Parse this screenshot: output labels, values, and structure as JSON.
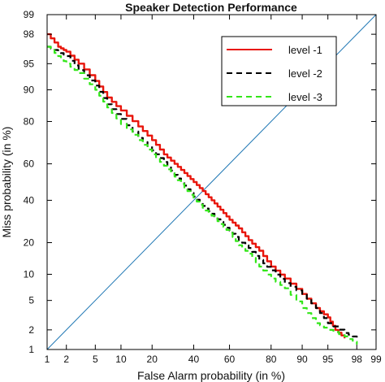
{
  "chart_data": {
    "type": "line",
    "title": "Speaker Detection Performance",
    "xlabel": "False Alarm probability (in %)",
    "ylabel": "Miss probability (in %)",
    "scale": "normal-deviate (probit)",
    "xlim": [
      1,
      99
    ],
    "ylim": [
      1,
      99
    ],
    "x_ticks": [
      "1",
      "2",
      "5",
      "10",
      "20",
      "40",
      "60",
      "80",
      "90",
      "95",
      "98",
      "99"
    ],
    "y_ticks": [
      "1",
      "2",
      "5",
      "10",
      "20",
      "40",
      "60",
      "80",
      "90",
      "95",
      "98",
      "99"
    ],
    "grid": false,
    "legend_position": "top-right",
    "reference_line": {
      "color": "#1f77b4",
      "points": [
        [
          1,
          1
        ],
        [
          99,
          99
        ]
      ]
    },
    "series": [
      {
        "name": "level -1",
        "color": "#e8160c",
        "dash": "solid",
        "points": [
          [
            1,
            98
          ],
          [
            1.5,
            97
          ],
          [
            2,
            96.5
          ],
          [
            3,
            95
          ],
          [
            5,
            92
          ],
          [
            7,
            88
          ],
          [
            10,
            84
          ],
          [
            15,
            78
          ],
          [
            20,
            72
          ],
          [
            25,
            65
          ],
          [
            30,
            60
          ],
          [
            35,
            55
          ],
          [
            40,
            50
          ],
          [
            45,
            45
          ],
          [
            50,
            40
          ],
          [
            55,
            35
          ],
          [
            60,
            30
          ],
          [
            65,
            26
          ],
          [
            70,
            21
          ],
          [
            75,
            17
          ],
          [
            80,
            12
          ],
          [
            85,
            9
          ],
          [
            90,
            6
          ],
          [
            93,
            4
          ],
          [
            95,
            3
          ],
          [
            96,
            2
          ],
          [
            97,
            1.5
          ]
        ]
      },
      {
        "name": "level -2",
        "color": "#000000",
        "dash": "dashed",
        "points": [
          [
            1,
            97
          ],
          [
            1.5,
            96.5
          ],
          [
            2,
            96
          ],
          [
            3,
            94
          ],
          [
            5,
            91
          ],
          [
            7,
            86
          ],
          [
            10,
            81
          ],
          [
            15,
            73
          ],
          [
            20,
            67
          ],
          [
            25,
            61
          ],
          [
            30,
            54
          ],
          [
            35,
            48
          ],
          [
            40,
            42
          ],
          [
            45,
            37
          ],
          [
            50,
            33
          ],
          [
            55,
            29
          ],
          [
            60,
            25
          ],
          [
            65,
            21
          ],
          [
            70,
            18
          ],
          [
            75,
            14
          ],
          [
            80,
            11
          ],
          [
            85,
            8
          ],
          [
            90,
            6
          ],
          [
            93,
            4
          ],
          [
            95,
            2.5
          ],
          [
            97,
            1.8
          ],
          [
            98,
            1.5
          ]
        ]
      },
      {
        "name": "level -3",
        "color": "#33e61a",
        "dash": "dashed",
        "points": [
          [
            1,
            97
          ],
          [
            1.5,
            96
          ],
          [
            2,
            95
          ],
          [
            3,
            93.5
          ],
          [
            5,
            90
          ],
          [
            7,
            85
          ],
          [
            10,
            79
          ],
          [
            15,
            72
          ],
          [
            20,
            65
          ],
          [
            25,
            59
          ],
          [
            30,
            53
          ],
          [
            35,
            47
          ],
          [
            40,
            41
          ],
          [
            45,
            36
          ],
          [
            50,
            32
          ],
          [
            55,
            28
          ],
          [
            60,
            24
          ],
          [
            65,
            19
          ],
          [
            70,
            16
          ],
          [
            75,
            12
          ],
          [
            80,
            9
          ],
          [
            85,
            7
          ],
          [
            90,
            4
          ],
          [
            93,
            2.5
          ],
          [
            95,
            2
          ],
          [
            97,
            1.6
          ],
          [
            98,
            1.2
          ]
        ]
      }
    ]
  }
}
